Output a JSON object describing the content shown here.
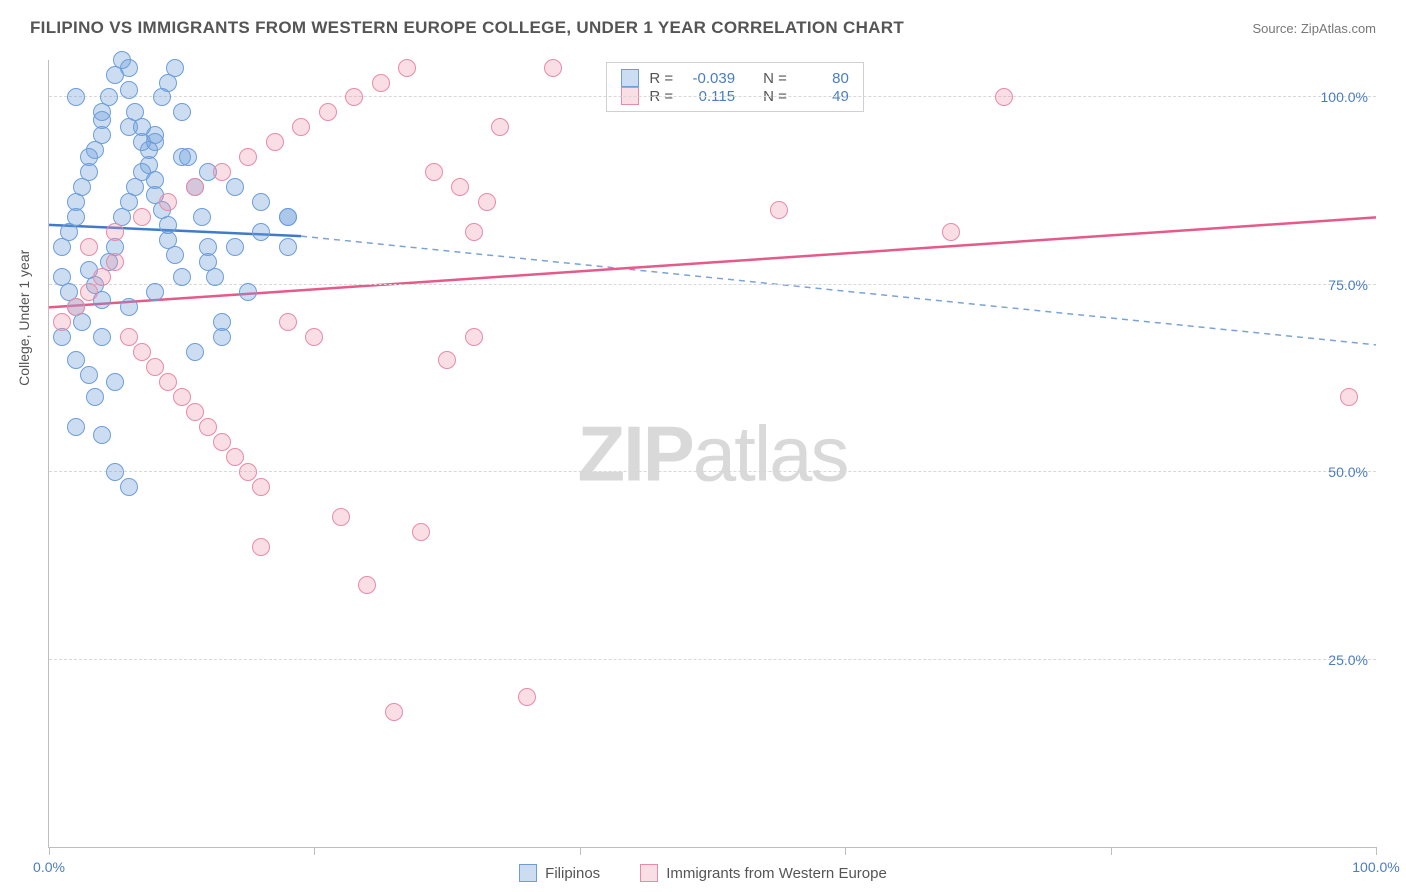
{
  "title": "FILIPINO VS IMMIGRANTS FROM WESTERN EUROPE COLLEGE, UNDER 1 YEAR CORRELATION CHART",
  "source": "Source: ZipAtlas.com",
  "ylabel": "College, Under 1 year",
  "watermark_bold": "ZIP",
  "watermark_rest": "atlas",
  "chart": {
    "type": "scatter",
    "xlim": [
      0,
      100
    ],
    "ylim": [
      0,
      105
    ],
    "x_ticks": [
      0,
      20,
      40,
      60,
      80,
      100
    ],
    "x_tick_labels": {
      "0": "0.0%",
      "100": "100.0%"
    },
    "y_gridlines": [
      25,
      50,
      75,
      100
    ],
    "y_tick_labels": {
      "25": "25.0%",
      "50": "50.0%",
      "75": "75.0%",
      "100": "100.0%"
    },
    "grid_color": "#d8d8d8",
    "axis_color": "#bebebe",
    "background_color": "#ffffff",
    "point_radius": 9,
    "series": [
      {
        "name": "Filipinos",
        "fill": "rgba(109,158,219,0.35)",
        "stroke": "#6d9edb",
        "line_solid_color": "#3e7cc9",
        "line_dash_color": "#7ba3d6",
        "line_width": 2.5,
        "R": "-0.039",
        "N": "80",
        "trend_solid": {
          "x1": 0,
          "y1": 83,
          "x2": 19,
          "y2": 81.5
        },
        "trend_dash": {
          "x1": 19,
          "y1": 81.5,
          "x2": 100,
          "y2": 67
        },
        "points": [
          [
            1,
            80
          ],
          [
            1.5,
            82
          ],
          [
            2,
            84
          ],
          [
            2,
            86
          ],
          [
            2.5,
            88
          ],
          [
            3,
            90
          ],
          [
            3,
            92
          ],
          [
            3.5,
            93
          ],
          [
            4,
            95
          ],
          [
            4,
            97
          ],
          [
            4.5,
            100
          ],
          [
            5,
            103
          ],
          [
            5.5,
            105
          ],
          [
            6,
            104
          ],
          [
            6,
            101
          ],
          [
            6.5,
            98
          ],
          [
            7,
            96
          ],
          [
            7,
            94
          ],
          [
            7.5,
            91
          ],
          [
            8,
            89
          ],
          [
            8,
            87
          ],
          [
            8.5,
            85
          ],
          [
            9,
            83
          ],
          [
            9,
            81
          ],
          [
            9.5,
            79
          ],
          [
            1,
            76
          ],
          [
            1.5,
            74
          ],
          [
            2,
            72
          ],
          [
            2.5,
            70
          ],
          [
            3,
            77
          ],
          [
            3.5,
            75
          ],
          [
            4,
            73
          ],
          [
            4.5,
            78
          ],
          [
            5,
            80
          ],
          [
            5.5,
            84
          ],
          [
            6,
            86
          ],
          [
            6.5,
            88
          ],
          [
            7,
            90
          ],
          [
            7.5,
            93
          ],
          [
            8,
            95
          ],
          [
            8.5,
            100
          ],
          [
            9,
            102
          ],
          [
            9.5,
            104
          ],
          [
            10,
            98
          ],
          [
            10.5,
            92
          ],
          [
            11,
            88
          ],
          [
            11.5,
            84
          ],
          [
            12,
            80
          ],
          [
            12.5,
            76
          ],
          [
            13,
            68
          ],
          [
            1,
            68
          ],
          [
            2,
            65
          ],
          [
            3,
            63
          ],
          [
            3.5,
            60
          ],
          [
            4,
            55
          ],
          [
            5,
            50
          ],
          [
            6,
            48
          ],
          [
            2,
            56
          ],
          [
            4,
            68
          ],
          [
            6,
            72
          ],
          [
            8,
            74
          ],
          [
            10,
            76
          ],
          [
            12,
            78
          ],
          [
            14,
            80
          ],
          [
            16,
            82
          ],
          [
            18,
            84
          ],
          [
            2,
            100
          ],
          [
            4,
            98
          ],
          [
            6,
            96
          ],
          [
            8,
            94
          ],
          [
            10,
            92
          ],
          [
            12,
            90
          ],
          [
            14,
            88
          ],
          [
            16,
            86
          ],
          [
            18,
            84
          ],
          [
            18,
            80
          ],
          [
            15,
            74
          ],
          [
            13,
            70
          ],
          [
            11,
            66
          ],
          [
            5,
            62
          ]
        ]
      },
      {
        "name": "Immigrants from Western Europe",
        "fill": "rgba(235,145,170,0.30)",
        "stroke": "#e88ba7",
        "line_solid_color": "#e65a8a",
        "line_width": 2.5,
        "R": "0.115",
        "N": "49",
        "trend_solid": {
          "x1": 0,
          "y1": 72,
          "x2": 100,
          "y2": 84
        },
        "points": [
          [
            1,
            70
          ],
          [
            2,
            72
          ],
          [
            3,
            74
          ],
          [
            4,
            76
          ],
          [
            5,
            78
          ],
          [
            6,
            68
          ],
          [
            7,
            66
          ],
          [
            8,
            64
          ],
          [
            9,
            62
          ],
          [
            10,
            60
          ],
          [
            11,
            58
          ],
          [
            12,
            56
          ],
          [
            13,
            54
          ],
          [
            14,
            52
          ],
          [
            15,
            50
          ],
          [
            16,
            48
          ],
          [
            3,
            80
          ],
          [
            5,
            82
          ],
          [
            7,
            84
          ],
          [
            9,
            86
          ],
          [
            11,
            88
          ],
          [
            13,
            90
          ],
          [
            15,
            92
          ],
          [
            17,
            94
          ],
          [
            19,
            96
          ],
          [
            21,
            98
          ],
          [
            23,
            100
          ],
          [
            25,
            102
          ],
          [
            27,
            104
          ],
          [
            29,
            90
          ],
          [
            31,
            88
          ],
          [
            33,
            86
          ],
          [
            18,
            70
          ],
          [
            20,
            68
          ],
          [
            22,
            44
          ],
          [
            24,
            35
          ],
          [
            26,
            18
          ],
          [
            28,
            42
          ],
          [
            30,
            65
          ],
          [
            32,
            68
          ],
          [
            34,
            96
          ],
          [
            36,
            20
          ],
          [
            38,
            104
          ],
          [
            55,
            85
          ],
          [
            68,
            82
          ],
          [
            72,
            100
          ],
          [
            98,
            60
          ],
          [
            32,
            82
          ],
          [
            16,
            40
          ]
        ]
      }
    ]
  },
  "legend": {
    "series1_label": "Filipinos",
    "series2_label": "Immigrants from Western Europe"
  },
  "statbox": {
    "r_label": "R =",
    "n_label": "N ="
  }
}
